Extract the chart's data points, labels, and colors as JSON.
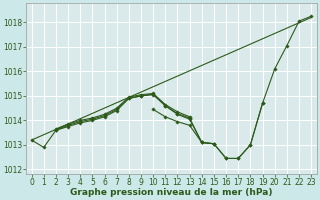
{
  "background_color": "#cce8e8",
  "plot_bg_color": "#daeaea",
  "grid_color": "#ffffff",
  "line_color": "#2d5a1b",
  "marker_color": "#2d5a1b",
  "xlabel": "Graphe pression niveau de la mer (hPa)",
  "xlabel_fontsize": 6.5,
  "tick_fontsize": 5.5,
  "xlim": [
    -0.5,
    23.5
  ],
  "ylim": [
    1011.8,
    1018.8
  ],
  "yticks": [
    1012,
    1013,
    1014,
    1015,
    1016,
    1017,
    1018
  ],
  "xticks": [
    0,
    1,
    2,
    3,
    4,
    5,
    6,
    7,
    8,
    9,
    10,
    11,
    12,
    13,
    14,
    15,
    16,
    17,
    18,
    19,
    20,
    21,
    22,
    23
  ],
  "series": [
    {
      "x": [
        0,
        23
      ],
      "y": [
        1013.2,
        1018.2
      ],
      "markers": false
    },
    {
      "x": [
        0,
        1,
        2,
        3,
        4,
        5,
        6,
        7,
        8,
        9,
        10,
        11,
        12,
        13,
        14,
        15,
        16,
        17,
        18,
        19,
        20,
        21,
        22,
        23
      ],
      "y": [
        1013.2,
        1012.9,
        1013.6,
        1013.75,
        1013.9,
        1014.0,
        1014.15,
        1014.4,
        1014.9,
        1015.0,
        1015.05,
        1014.6,
        1014.25,
        1014.05,
        1013.1,
        1013.05,
        1012.45,
        1012.45,
        1013.0,
        1014.7,
        1016.1,
        1017.05,
        1018.05,
        1018.25
      ],
      "markers": true
    },
    {
      "x": [
        2,
        3,
        4,
        5,
        6,
        7,
        8,
        9,
        10,
        11,
        12,
        13
      ],
      "y": [
        1013.65,
        1013.85,
        1014.0,
        1014.1,
        1014.25,
        1014.5,
        1014.95,
        1015.05,
        1015.1,
        1014.65,
        1014.35,
        1014.15
      ],
      "markers": true
    },
    {
      "x": [
        2,
        3,
        4,
        5,
        6,
        7,
        8,
        9,
        10,
        11,
        12,
        13,
        14,
        15
      ],
      "y": [
        1013.6,
        1013.8,
        1013.95,
        1014.05,
        1014.2,
        1014.45,
        1014.9,
        1015.0,
        1015.08,
        1014.6,
        1014.28,
        1014.1,
        1013.1,
        1013.05
      ],
      "markers": true
    },
    {
      "x": [
        10,
        11,
        12,
        13,
        14,
        15,
        16,
        17,
        18,
        19
      ],
      "y": [
        1014.45,
        1014.15,
        1013.95,
        1013.8,
        1013.1,
        1013.05,
        1012.45,
        1012.45,
        1013.0,
        1014.7
      ],
      "markers": true
    }
  ]
}
